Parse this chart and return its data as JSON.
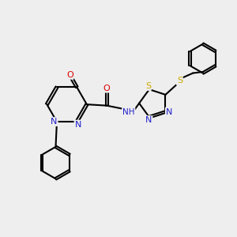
{
  "background_color": "#eeeeee",
  "atom_colors": {
    "C": "#000000",
    "N": "#2020cc",
    "O": "#dd0000",
    "S": "#ccaa00",
    "H": "#000000"
  },
  "bond_color": "#000000",
  "figsize": [
    3.0,
    3.0
  ],
  "dpi": 100
}
